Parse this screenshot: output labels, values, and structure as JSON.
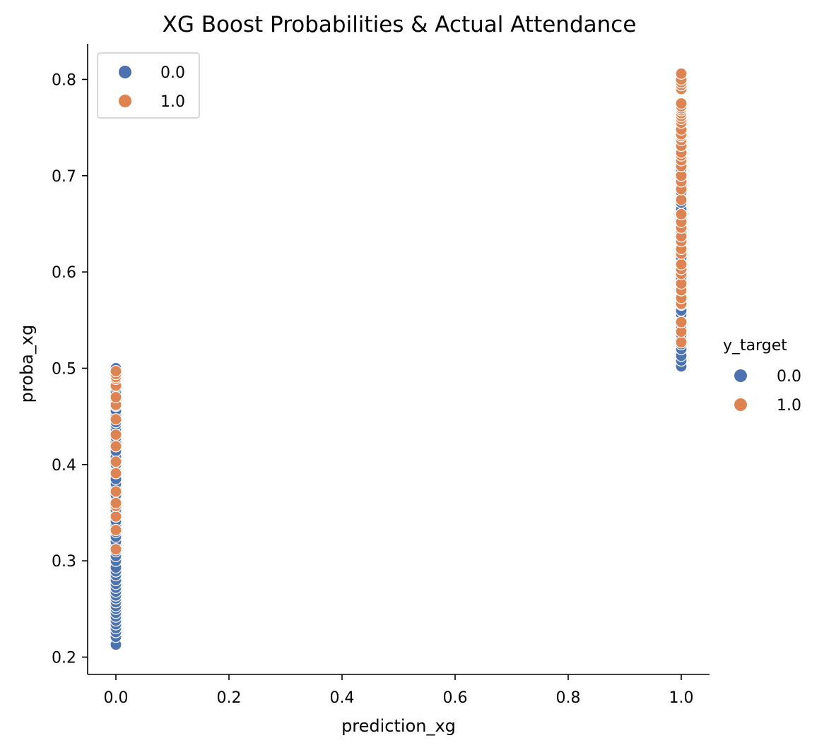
{
  "chart_data": {
    "type": "scatter",
    "title": "XG Boost Probabilities & Actual Attendance",
    "xlabel": "prediction_xg",
    "ylabel": "proba_xg",
    "xlim": [
      -0.05,
      1.05
    ],
    "ylim": [
      0.182,
      0.837
    ],
    "xticks": [
      0.0,
      0.2,
      0.4,
      0.6,
      0.8,
      1.0
    ],
    "xtick_labels": [
      "0.0",
      "0.2",
      "0.4",
      "0.6",
      "0.8",
      "1.0"
    ],
    "yticks": [
      0.2,
      0.3,
      0.4,
      0.5,
      0.6,
      0.7,
      0.8
    ],
    "ytick_labels": [
      "0.2",
      "0.3",
      "0.4",
      "0.5",
      "0.6",
      "0.7",
      "0.8"
    ],
    "grid": false,
    "legend_title": "y_target",
    "legend_placement": "right (outside) and top-left (inside)",
    "legend_entries": [
      "0.0",
      "1.0"
    ],
    "colors": {
      "0.0": "#4c72b0",
      "1.0": "#dd8452"
    },
    "series": [
      {
        "name": "0.0",
        "x": [
          0,
          0,
          0,
          0,
          0,
          0,
          0,
          0,
          0,
          0,
          0,
          0,
          0,
          0,
          0,
          0,
          0,
          0,
          0,
          0,
          0,
          0,
          0,
          0,
          0,
          0,
          0,
          0,
          0,
          0,
          0,
          0,
          0,
          0,
          0,
          0,
          0,
          0,
          0,
          0,
          0,
          0,
          0,
          0,
          0,
          0,
          0,
          0,
          0,
          0,
          0,
          0,
          0,
          0,
          0,
          0,
          0,
          0,
          0,
          0,
          1,
          1,
          1,
          1,
          1,
          1,
          1,
          1,
          1,
          1,
          1,
          1,
          1,
          1,
          1,
          1,
          1,
          1,
          1,
          1,
          1,
          1,
          1,
          1,
          1,
          1,
          1,
          1,
          1,
          1,
          1,
          1,
          1,
          1,
          1,
          1,
          1,
          1
        ],
        "y": [
          0.213,
          0.221,
          0.226,
          0.23,
          0.234,
          0.238,
          0.242,
          0.246,
          0.25,
          0.253,
          0.257,
          0.261,
          0.264,
          0.268,
          0.272,
          0.276,
          0.28,
          0.285,
          0.289,
          0.293,
          0.3,
          0.305,
          0.31,
          0.316,
          0.32,
          0.325,
          0.33,
          0.336,
          0.341,
          0.346,
          0.35,
          0.353,
          0.36,
          0.368,
          0.375,
          0.38,
          0.385,
          0.393,
          0.4,
          0.408,
          0.414,
          0.42,
          0.423,
          0.428,
          0.432,
          0.437,
          0.441,
          0.444,
          0.45,
          0.456,
          0.461,
          0.467,
          0.471,
          0.476,
          0.48,
          0.486,
          0.49,
          0.494,
          0.497,
          0.5,
          0.502,
          0.508,
          0.513,
          0.52,
          0.525,
          0.53,
          0.535,
          0.541,
          0.548,
          0.556,
          0.56,
          0.566,
          0.573,
          0.575,
          0.58,
          0.585,
          0.594,
          0.6,
          0.608,
          0.615,
          0.622,
          0.63,
          0.638,
          0.641,
          0.647,
          0.655,
          0.665,
          0.672,
          0.683,
          0.69,
          0.694,
          0.7,
          0.707,
          0.713,
          0.718,
          0.723,
          0.726,
          0.729
        ]
      },
      {
        "name": "1.0",
        "x": [
          0,
          0,
          0,
          0,
          0,
          0,
          0,
          0,
          0,
          0,
          0,
          0,
          0,
          0,
          0,
          0,
          0,
          0,
          1,
          1,
          1,
          1,
          1,
          1,
          1,
          1,
          1,
          1,
          1,
          1,
          1,
          1,
          1,
          1,
          1,
          1,
          1,
          1,
          1,
          1,
          1,
          1,
          1,
          1,
          1,
          1,
          1,
          1,
          1,
          1,
          1,
          1,
          1,
          1,
          1,
          1,
          1,
          1,
          1,
          1,
          1
        ],
        "y": [
          0.312,
          0.332,
          0.346,
          0.357,
          0.36,
          0.372,
          0.391,
          0.403,
          0.419,
          0.431,
          0.447,
          0.462,
          0.47,
          0.482,
          0.489,
          0.491,
          0.494,
          0.497,
          0.527,
          0.538,
          0.548,
          0.567,
          0.573,
          0.581,
          0.588,
          0.598,
          0.603,
          0.608,
          0.619,
          0.624,
          0.632,
          0.637,
          0.646,
          0.652,
          0.66,
          0.675,
          0.686,
          0.694,
          0.7,
          0.71,
          0.716,
          0.721,
          0.724,
          0.731,
          0.737,
          0.741,
          0.743,
          0.748,
          0.755,
          0.759,
          0.762,
          0.765,
          0.768,
          0.77,
          0.772,
          0.775,
          0.79,
          0.794,
          0.797,
          0.8,
          0.806
        ]
      }
    ]
  }
}
